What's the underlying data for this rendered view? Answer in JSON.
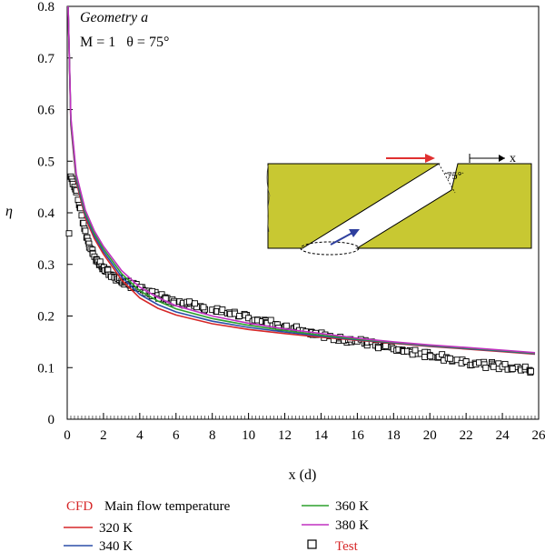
{
  "chart_data": {
    "type": "line",
    "annotation_title": "Geometry a",
    "annotation_params": "M = 1   θ = 75°",
    "xlabel": "x (d)",
    "ylabel": "η",
    "xlim": [
      0,
      26
    ],
    "ylim": [
      0,
      0.8
    ],
    "xticks": [
      0,
      2,
      4,
      6,
      8,
      10,
      12,
      14,
      16,
      18,
      20,
      22,
      24,
      26
    ],
    "yticks": [
      0,
      0.1,
      0.2,
      0.3,
      0.4,
      0.5,
      0.6,
      0.7,
      0.8
    ],
    "grid": false,
    "legend_title": "Main flow temperature",
    "legend_cfd_label": "CFD",
    "series": [
      {
        "name": "320 K",
        "color": "#d62728",
        "x": [
          0.05,
          0.2,
          0.5,
          1,
          1.5,
          2,
          3,
          4,
          5,
          6,
          8,
          10,
          12,
          14,
          16,
          18,
          20,
          22,
          24,
          25.8
        ],
        "values": [
          0.8,
          0.57,
          0.46,
          0.39,
          0.35,
          0.32,
          0.27,
          0.235,
          0.215,
          0.202,
          0.185,
          0.174,
          0.166,
          0.159,
          0.153,
          0.147,
          0.141,
          0.136,
          0.131,
          0.126
        ]
      },
      {
        "name": "340 K",
        "color": "#2b4ea8",
        "x": [
          0.05,
          0.2,
          0.5,
          1,
          1.5,
          2,
          3,
          4,
          5,
          6,
          8,
          10,
          12,
          14,
          16,
          18,
          20,
          22,
          24,
          25.8
        ],
        "values": [
          0.8,
          0.575,
          0.465,
          0.395,
          0.355,
          0.325,
          0.276,
          0.242,
          0.222,
          0.208,
          0.19,
          0.178,
          0.169,
          0.161,
          0.154,
          0.148,
          0.142,
          0.137,
          0.132,
          0.127
        ]
      },
      {
        "name": "360 K",
        "color": "#2ca02c",
        "x": [
          0.05,
          0.2,
          0.5,
          1,
          1.5,
          2,
          3,
          4,
          5,
          6,
          8,
          10,
          12,
          14,
          16,
          18,
          20,
          22,
          24,
          25.8
        ],
        "values": [
          0.8,
          0.58,
          0.47,
          0.4,
          0.36,
          0.33,
          0.282,
          0.249,
          0.229,
          0.214,
          0.195,
          0.182,
          0.172,
          0.163,
          0.155,
          0.149,
          0.143,
          0.138,
          0.133,
          0.128
        ]
      },
      {
        "name": "380 K",
        "color": "#c030c0",
        "x": [
          0.05,
          0.2,
          0.5,
          1,
          1.5,
          2,
          3,
          4,
          5,
          6,
          8,
          10,
          12,
          14,
          16,
          18,
          20,
          22,
          24,
          25.8
        ],
        "values": [
          0.8,
          0.585,
          0.475,
          0.405,
          0.365,
          0.335,
          0.288,
          0.256,
          0.236,
          0.22,
          0.2,
          0.186,
          0.175,
          0.166,
          0.157,
          0.15,
          0.144,
          0.139,
          0.134,
          0.129
        ]
      }
    ],
    "test": {
      "name": "Test",
      "marker": "open-square",
      "color": "#000000",
      "x": [
        0.2,
        0.3,
        0.4,
        0.5,
        0.6,
        0.7,
        0.8,
        0.9,
        1.0,
        1.1,
        1.2,
        1.3,
        1.4,
        1.5,
        1.6,
        1.7,
        1.8,
        1.9,
        2.0,
        2.2,
        2.4,
        2.6,
        2.8,
        3.0,
        3.2,
        3.4,
        3.6,
        3.8,
        4.0,
        4.3,
        4.6,
        5.0,
        5.4,
        5.8,
        6.2,
        6.6,
        7.0,
        7.5,
        8.0,
        8.5,
        9.0,
        9.5,
        10.0,
        10.5,
        11.0,
        11.5,
        12.0,
        12.5,
        13.0,
        13.5,
        14.0,
        14.5,
        15.0,
        15.5,
        16.0,
        16.5,
        17.0,
        17.5,
        18.0,
        18.5,
        19.0,
        19.5,
        20.0,
        20.5,
        21.0,
        21.5,
        22.0,
        22.5,
        23.0,
        23.5,
        24.0,
        24.5,
        25.0,
        25.5
      ],
      "values": [
        0.47,
        0.46,
        0.45,
        0.44,
        0.425,
        0.41,
        0.395,
        0.38,
        0.365,
        0.352,
        0.34,
        0.33,
        0.322,
        0.315,
        0.31,
        0.305,
        0.3,
        0.296,
        0.292,
        0.286,
        0.28,
        0.276,
        0.272,
        0.268,
        0.265,
        0.262,
        0.259,
        0.256,
        0.253,
        0.249,
        0.245,
        0.24,
        0.236,
        0.232,
        0.228,
        0.224,
        0.22,
        0.216,
        0.212,
        0.208,
        0.204,
        0.2,
        0.196,
        0.192,
        0.188,
        0.184,
        0.18,
        0.176,
        0.172,
        0.168,
        0.165,
        0.161,
        0.157,
        0.154,
        0.151,
        0.147,
        0.143,
        0.14,
        0.136,
        0.133,
        0.13,
        0.127,
        0.124,
        0.121,
        0.118,
        0.115,
        0.112,
        0.109,
        0.106,
        0.104,
        0.102,
        0.1,
        0.098,
        0.095
      ]
    },
    "outlier": {
      "x": 0.1,
      "y": 0.36
    },
    "inset": {
      "x_label": "x",
      "angle_label": "75°",
      "plate_color": "#c8c832",
      "mainflow_arrow_color": "#e03030",
      "coolant_arrow_color": "#2e3f9e"
    }
  }
}
